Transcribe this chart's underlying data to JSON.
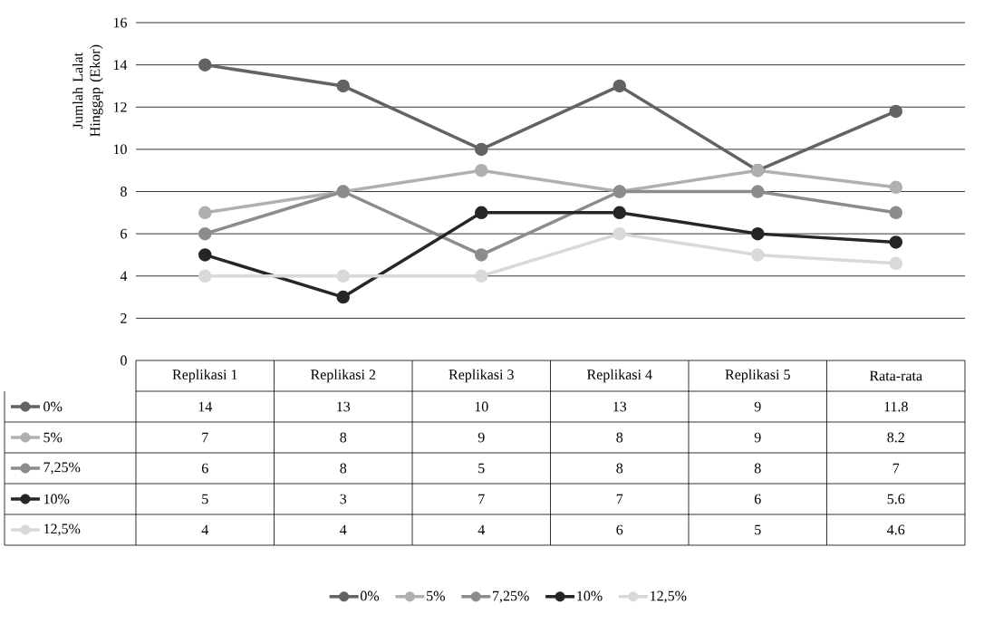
{
  "chart_data": {
    "type": "line",
    "ylabel": "Jumlah Lalat Hinggap (Ekor)",
    "categories": [
      "Replikasi 1",
      "Replikasi 2",
      "Replikasi 3",
      "Replikasi 4",
      "Replikasi 5",
      "Rata-rata"
    ],
    "series": [
      {
        "name": "0%",
        "color": "#636363",
        "values": [
          14,
          13,
          10,
          13,
          9,
          11.8
        ]
      },
      {
        "name": "5%",
        "color": "#b0b0b0",
        "values": [
          7,
          8,
          9,
          8,
          9,
          8.2
        ]
      },
      {
        "name": "7,25%",
        "color": "#8c8c8c",
        "values": [
          6,
          8,
          5,
          8,
          8,
          7
        ]
      },
      {
        "name": "10%",
        "color": "#262626",
        "values": [
          5,
          3,
          7,
          7,
          6,
          5.6
        ]
      },
      {
        "name": "12,5%",
        "color": "#d9d9d9",
        "values": [
          4,
          4,
          4,
          6,
          5,
          4.6
        ]
      }
    ],
    "ylim": [
      0,
      16
    ],
    "yticks": [
      0,
      2,
      4,
      6,
      8,
      10,
      12,
      14,
      16
    ],
    "grid": "y",
    "legend": "bottom",
    "marker": "circle",
    "line_style": "solid",
    "data_labels": true
  }
}
